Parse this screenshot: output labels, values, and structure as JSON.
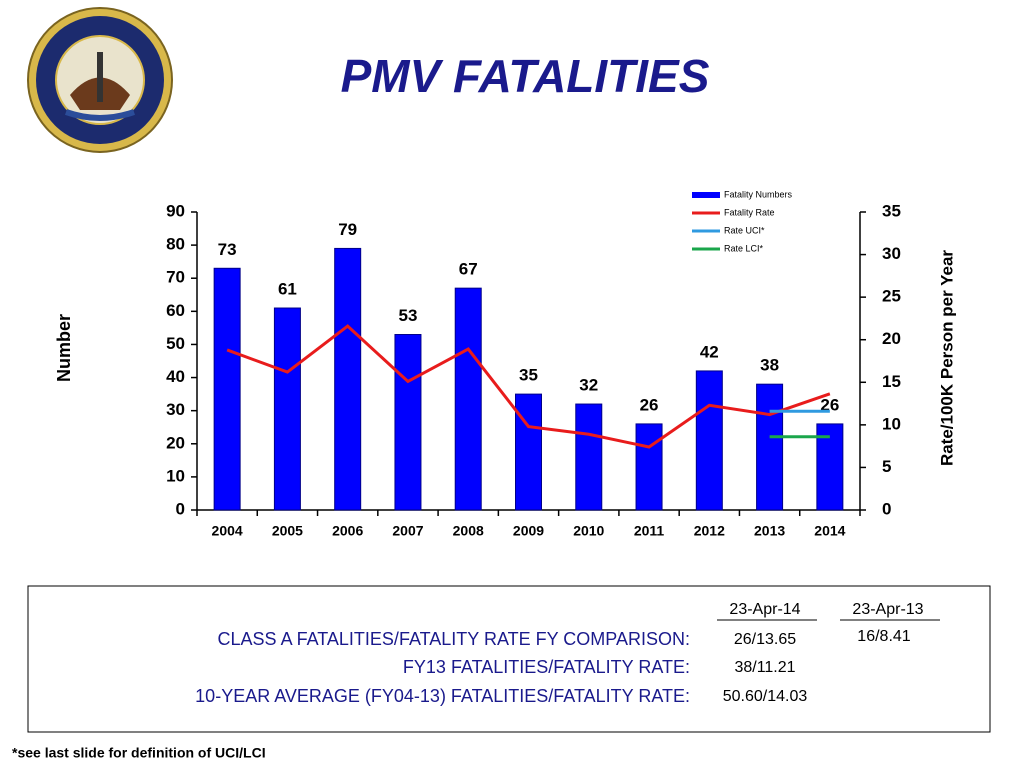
{
  "chart_data": {
    "type": "bar",
    "title": "PMV  FATALITIES",
    "categories": [
      "2004",
      "2005",
      "2006",
      "2007",
      "2008",
      "2009",
      "2010",
      "2011",
      "2012",
      "2013",
      "2014"
    ],
    "series": [
      {
        "name": "Fatality Numbers",
        "type": "bar",
        "color": "#0000ff",
        "values": [
          73,
          61,
          79,
          53,
          67,
          35,
          32,
          26,
          42,
          38,
          26
        ]
      },
      {
        "name": "Fatality Rate",
        "type": "line",
        "axis": "y2",
        "color": "#e81c1c",
        "values": [
          18.8,
          16.2,
          21.6,
          15.1,
          18.9,
          9.8,
          8.9,
          7.4,
          12.3,
          11.21,
          13.65
        ]
      },
      {
        "name": "Rate UCI*",
        "type": "line",
        "axis": "y2",
        "color": "#2f9ae0",
        "values": [
          null,
          null,
          null,
          null,
          null,
          null,
          null,
          null,
          null,
          11.6,
          11.6
        ]
      },
      {
        "name": "Rate LCI*",
        "type": "line",
        "axis": "y2",
        "color": "#1aa64b",
        "values": [
          null,
          null,
          null,
          null,
          null,
          null,
          null,
          null,
          null,
          8.6,
          8.6
        ]
      }
    ],
    "ylabel": "Number",
    "y2label": "Rate/100K Person per Year",
    "ylim": [
      0,
      90
    ],
    "yticks": [
      0,
      10,
      20,
      30,
      40,
      50,
      60,
      70,
      80,
      90
    ],
    "y2lim": [
      0,
      35
    ],
    "y2ticks": [
      0,
      5,
      10,
      15,
      20,
      25,
      30,
      35
    ],
    "legend": "upper right"
  },
  "comparison": {
    "columns": [
      "23-Apr-14",
      "23-Apr-13"
    ],
    "rows": [
      {
        "label": "CLASS A FATALITIES/FATALITY RATE FY COMPARISON:",
        "values": [
          "26/13.65",
          "16/8.41"
        ]
      },
      {
        "label": "FY13 FATALITIES/FATALITY RATE:",
        "values": [
          "38/11.21"
        ]
      },
      {
        "label": "10-YEAR AVERAGE (FY04-13) FATALITIES/FATALITY RATE:",
        "values": [
          "50.60/14.03"
        ]
      }
    ]
  },
  "footnote": "*see last slide for definition of UCI/LCI"
}
